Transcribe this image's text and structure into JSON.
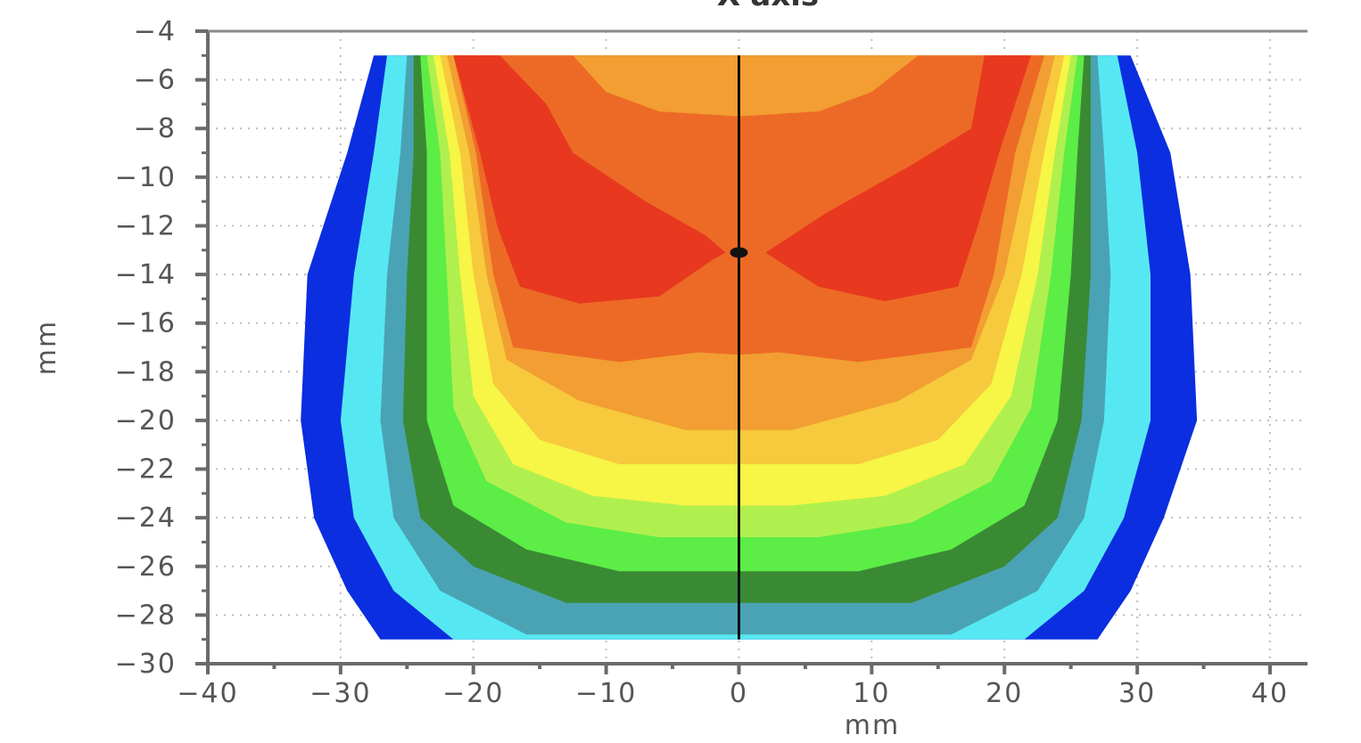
{
  "chart_data": {
    "type": "heatmap",
    "title": "X-axis",
    "xlabel": "mm",
    "ylabel": "mm",
    "xlim": [
      -40,
      40
    ],
    "ylim": [
      -30,
      -4
    ],
    "x_ticks": [
      -40,
      -30,
      -20,
      -10,
      0,
      10,
      20,
      30,
      40
    ],
    "x_tick_labels": [
      "−40",
      "−30",
      "−20",
      "−10",
      "0",
      "10",
      "20",
      "30",
      "40"
    ],
    "y_ticks": [
      -4,
      -6,
      -8,
      -10,
      -12,
      -14,
      -16,
      -18,
      -20,
      -22,
      -24,
      -26,
      -28,
      -30
    ],
    "y_tick_labels": [
      "−4",
      "−6",
      "−8",
      "−10",
      "−12",
      "−14",
      "−16",
      "−18",
      "−20",
      "−22",
      "−24",
      "−26",
      "−28",
      "−30"
    ],
    "grid": true,
    "centerline_x": 0,
    "marker": {
      "x": 0,
      "y": -13.1
    },
    "contour_colors": [
      "#0a2ee0",
      "#56e8f2",
      "#4aa3b4",
      "#3a8a34",
      "#5ced46",
      "#b0f04e",
      "#f7f545",
      "#f7c93c",
      "#f29e32",
      "#ed6a26",
      "#e8381f"
    ],
    "contour_bands": [
      {
        "level": 1,
        "color": "#0a2ee0",
        "points": [
          [
            -27.5,
            -5
          ],
          [
            -29.5,
            -9
          ],
          [
            -32.5,
            -14
          ],
          [
            -33,
            -20
          ],
          [
            -32,
            -24
          ],
          [
            -29.5,
            -27
          ],
          [
            -27,
            -29
          ],
          [
            27,
            -29
          ],
          [
            29.5,
            -27
          ],
          [
            32,
            -24
          ],
          [
            34.5,
            -20
          ],
          [
            34,
            -14
          ],
          [
            32.5,
            -9
          ],
          [
            29.5,
            -5
          ]
        ]
      },
      {
        "level": 2,
        "color": "#56e8f2",
        "points": [
          [
            -26.5,
            -5
          ],
          [
            -27.5,
            -9
          ],
          [
            -29,
            -14
          ],
          [
            -30,
            -20
          ],
          [
            -29,
            -24
          ],
          [
            -26,
            -27
          ],
          [
            -21.5,
            -29
          ],
          [
            21.5,
            -29
          ],
          [
            26,
            -27
          ],
          [
            29,
            -24
          ],
          [
            31,
            -20
          ],
          [
            31,
            -14
          ],
          [
            30,
            -9
          ],
          [
            28.5,
            -5
          ]
        ]
      },
      {
        "level": 3,
        "color": "#4aa3b4",
        "points": [
          [
            -25,
            -5
          ],
          [
            -25.5,
            -9
          ],
          [
            -26.5,
            -14
          ],
          [
            -27,
            -20
          ],
          [
            -26,
            -24
          ],
          [
            -22.5,
            -27
          ],
          [
            -16,
            -28.8
          ],
          [
            16,
            -28.8
          ],
          [
            22.5,
            -27
          ],
          [
            26,
            -24
          ],
          [
            27.5,
            -20
          ],
          [
            28,
            -14
          ],
          [
            27.5,
            -9
          ],
          [
            27,
            -5
          ]
        ]
      },
      {
        "level": 4,
        "color": "#3a8a34",
        "points": [
          [
            -24.5,
            -5
          ],
          [
            -24.5,
            -9
          ],
          [
            -25,
            -14
          ],
          [
            -25.3,
            -20
          ],
          [
            -24,
            -24
          ],
          [
            -20,
            -26
          ],
          [
            -13,
            -27.5
          ],
          [
            13,
            -27.5
          ],
          [
            20,
            -26
          ],
          [
            24,
            -24
          ],
          [
            25.8,
            -20
          ],
          [
            26.5,
            -14
          ],
          [
            26.5,
            -9
          ],
          [
            26.5,
            -5
          ]
        ]
      },
      {
        "level": 5,
        "color": "#5ced46",
        "points": [
          [
            -24,
            -5
          ],
          [
            -23.5,
            -9
          ],
          [
            -23.5,
            -14
          ],
          [
            -23.5,
            -20
          ],
          [
            -21.5,
            -23.5
          ],
          [
            -16,
            -25.3
          ],
          [
            -9,
            -26.2
          ],
          [
            9,
            -26.2
          ],
          [
            16,
            -25.3
          ],
          [
            21.5,
            -23.5
          ],
          [
            24,
            -20
          ],
          [
            25,
            -14
          ],
          [
            25.5,
            -9
          ],
          [
            26,
            -5
          ]
        ]
      },
      {
        "level": 6,
        "color": "#b0f04e",
        "points": [
          [
            -23.5,
            -5
          ],
          [
            -22.5,
            -9
          ],
          [
            -22,
            -14
          ],
          [
            -21.5,
            -19.5
          ],
          [
            -19,
            -22.5
          ],
          [
            -13,
            -24.2
          ],
          [
            -6,
            -24.8
          ],
          [
            6,
            -24.8
          ],
          [
            13,
            -24.2
          ],
          [
            19,
            -22.5
          ],
          [
            22,
            -19.5
          ],
          [
            23.5,
            -14
          ],
          [
            24.5,
            -9
          ],
          [
            25.5,
            -5
          ]
        ]
      },
      {
        "level": 7,
        "color": "#f7f545",
        "points": [
          [
            -23,
            -5
          ],
          [
            -21.8,
            -9
          ],
          [
            -21,
            -14
          ],
          [
            -20,
            -19
          ],
          [
            -17,
            -21.8
          ],
          [
            -11,
            -23.1
          ],
          [
            -4,
            -23.5
          ],
          [
            4,
            -23.5
          ],
          [
            11,
            -23.1
          ],
          [
            17,
            -21.8
          ],
          [
            20.5,
            -19
          ],
          [
            22.5,
            -14
          ],
          [
            23.8,
            -9
          ],
          [
            25,
            -5
          ]
        ]
      },
      {
        "level": 8,
        "color": "#f7c93c",
        "points": [
          [
            -22.5,
            -5
          ],
          [
            -21,
            -9
          ],
          [
            -20,
            -14
          ],
          [
            -18.5,
            -18.5
          ],
          [
            -15,
            -20.8
          ],
          [
            -9,
            -21.8
          ],
          [
            9,
            -21.8
          ],
          [
            15,
            -20.8
          ],
          [
            19,
            -18.5
          ],
          [
            21.3,
            -14
          ],
          [
            23,
            -9
          ],
          [
            24.5,
            -5
          ]
        ]
      },
      {
        "level": 9,
        "color": "#f29e32",
        "points": [
          [
            -22,
            -5
          ],
          [
            -20.3,
            -9
          ],
          [
            -19,
            -14
          ],
          [
            -17.5,
            -17.5
          ],
          [
            -12,
            -19.2
          ],
          [
            -4,
            -20.4
          ],
          [
            4,
            -20.4
          ],
          [
            12,
            -19.2
          ],
          [
            17.5,
            -17.5
          ],
          [
            20,
            -14
          ],
          [
            22,
            -9
          ],
          [
            23.8,
            -5
          ]
        ]
      },
      {
        "level": 10,
        "color": "#ed6a26",
        "points": [
          [
            -21.5,
            -5
          ],
          [
            -19.8,
            -9
          ],
          [
            -18.5,
            -14
          ],
          [
            -17,
            -17
          ],
          [
            -9,
            -17.6
          ],
          [
            -3,
            -17.2
          ],
          [
            0,
            -17.3
          ],
          [
            3,
            -17.2
          ],
          [
            9,
            -17.6
          ],
          [
            17.5,
            -17
          ],
          [
            19.2,
            -14
          ],
          [
            20.8,
            -9
          ],
          [
            23,
            -5
          ]
        ]
      },
      {
        "level": 11,
        "color": "#f29e32",
        "points": [
          [
            -12.5,
            -5
          ],
          [
            -10,
            -6.5
          ],
          [
            -6,
            -7.3
          ],
          [
            0,
            -7.5
          ],
          [
            6,
            -7.3
          ],
          [
            10,
            -6.5
          ],
          [
            13.5,
            -5
          ]
        ]
      },
      {
        "level": 12,
        "color": "#e8381f",
        "points": [
          [
            -21.5,
            -5
          ],
          [
            -19.5,
            -9
          ],
          [
            -18.2,
            -12
          ],
          [
            -16.5,
            -14.5
          ],
          [
            -12,
            -15.2
          ],
          [
            -6,
            -14.9
          ],
          [
            -2,
            -13.4
          ],
          [
            -1,
            -13.1
          ],
          [
            -2.5,
            -12.4
          ],
          [
            -7,
            -11
          ],
          [
            -12.5,
            -9
          ],
          [
            -14.5,
            -7
          ],
          [
            -18,
            -5
          ]
        ]
      },
      {
        "level": 12,
        "color": "#e8381f",
        "points": [
          [
            18.5,
            -5
          ],
          [
            17.5,
            -8
          ],
          [
            13,
            -9.5
          ],
          [
            6.5,
            -11.5
          ],
          [
            2,
            -13.1
          ],
          [
            6,
            -14.5
          ],
          [
            11,
            -15.1
          ],
          [
            16.5,
            -14.5
          ],
          [
            18,
            -12
          ],
          [
            19.6,
            -9
          ],
          [
            22,
            -5
          ]
        ]
      }
    ]
  }
}
